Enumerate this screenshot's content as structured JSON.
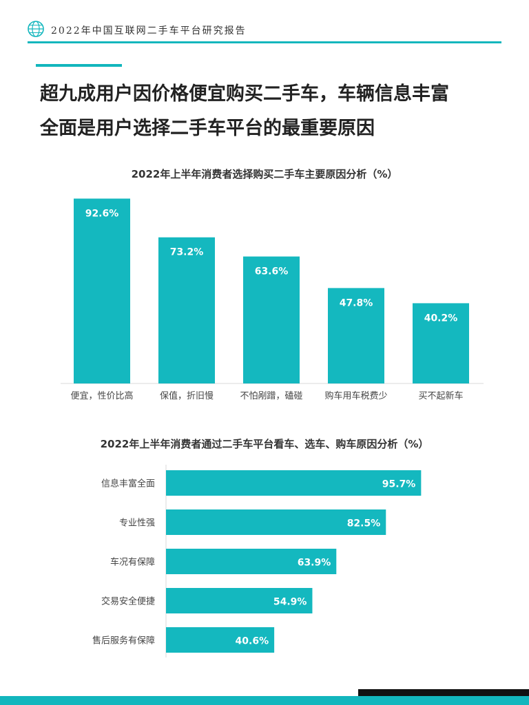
{
  "header": {
    "report_title": "2022年中国互联网二手车平台研究报告"
  },
  "headline": {
    "line1": "超九成用户因价格便宜购买二手车，车辆信息丰富",
    "line2": "全面是用户选择二手车平台的最重要原因"
  },
  "colors": {
    "accent": "#12b6bd",
    "bar": "#14b8bf",
    "footer_dark": "#111111"
  },
  "chart_data": [
    {
      "type": "bar",
      "orientation": "vertical",
      "title": "2022年上半年消费者选择购买二手车主要原因分析（%）",
      "categories": [
        "便宜，性价比高",
        "保值，折旧慢",
        "不怕剐蹭，磕碰",
        "购车用车税费少",
        "买不起新车"
      ],
      "values": [
        92.6,
        73.2,
        63.6,
        47.8,
        40.2
      ],
      "value_labels": [
        "92.6%",
        "73.2%",
        "63.6%",
        "47.8%",
        "40.2%"
      ],
      "ylim": [
        0,
        100
      ],
      "grid": false,
      "legend": "none"
    },
    {
      "type": "bar",
      "orientation": "horizontal",
      "title": "2022年上半年消费者通过二手车平台看车、选车、购车原因分析（%）",
      "categories": [
        "信息丰富全面",
        "专业性强",
        "车况有保障",
        "交易安全便捷",
        "售后服务有保障"
      ],
      "values": [
        95.7,
        82.5,
        63.9,
        54.9,
        40.6
      ],
      "value_labels": [
        "95.7%",
        "82.5%",
        "63.9%",
        "54.9%",
        "40.6%"
      ],
      "xlim": [
        0,
        100
      ],
      "grid": false,
      "legend": "none"
    }
  ]
}
